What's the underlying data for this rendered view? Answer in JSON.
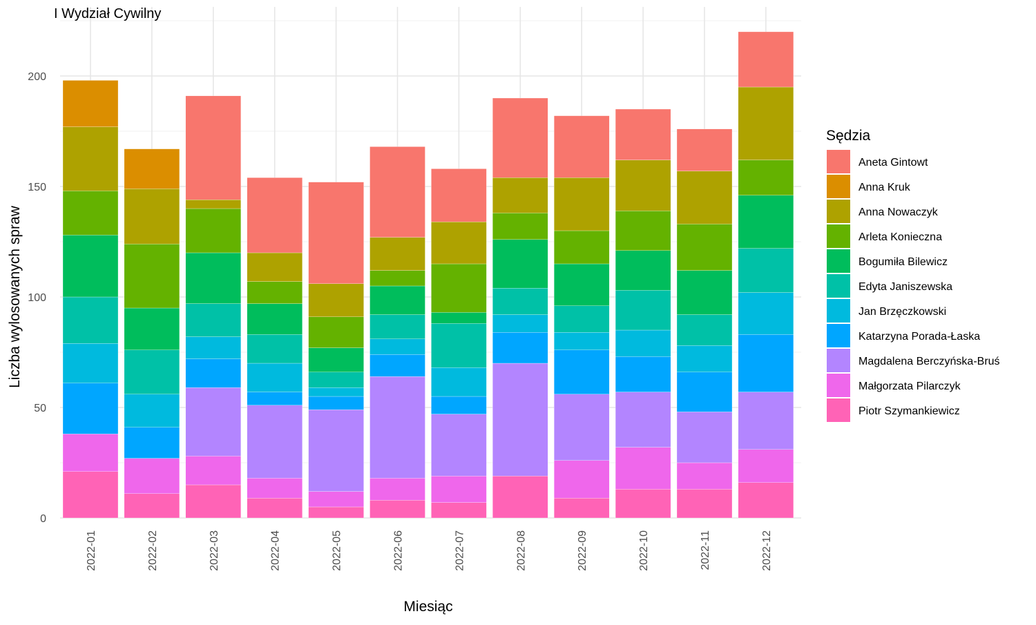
{
  "chart_data": {
    "type": "bar",
    "stacked": true,
    "title": "I Wydział Cywilny",
    "xlabel": "Miesiąc",
    "ylabel": "Liczba wylosowanych spraw",
    "ylim": [
      0,
      220
    ],
    "yticks": [
      0,
      50,
      100,
      150,
      200
    ],
    "grid": true,
    "legend_title": "Sędzia",
    "legend_position": "right",
    "categories": [
      "2022-01",
      "2022-02",
      "2022-03",
      "2022-04",
      "2022-05",
      "2022-06",
      "2022-07",
      "2022-08",
      "2022-09",
      "2022-10",
      "2022-11",
      "2022-12"
    ],
    "series": [
      {
        "name": "Aneta Gintowt",
        "color": "#F8766D",
        "values": [
          0,
          0,
          47,
          34,
          46,
          41,
          24,
          36,
          28,
          23,
          19,
          25
        ]
      },
      {
        "name": "Anna Kruk",
        "color": "#DB8E00",
        "values": [
          21,
          18,
          0,
          0,
          0,
          0,
          0,
          0,
          0,
          0,
          0,
          0
        ]
      },
      {
        "name": "Anna Nowaczyk",
        "color": "#AEA200",
        "values": [
          29,
          25,
          4,
          13,
          15,
          15,
          19,
          16,
          24,
          23,
          24,
          33
        ]
      },
      {
        "name": "Arleta Konieczna",
        "color": "#64B200",
        "values": [
          20,
          29,
          20,
          10,
          14,
          7,
          22,
          12,
          15,
          18,
          21,
          16
        ]
      },
      {
        "name": "Bogumiła Bilewicz",
        "color": "#00BD5C",
        "values": [
          28,
          19,
          23,
          14,
          11,
          13,
          5,
          22,
          19,
          18,
          20,
          24
        ]
      },
      {
        "name": "Edyta Janiszewska",
        "color": "#00C1A7",
        "values": [
          21,
          20,
          15,
          13,
          7,
          11,
          20,
          12,
          12,
          18,
          14,
          20
        ]
      },
      {
        "name": "Jan Brzęczkowski",
        "color": "#00BADE",
        "values": [
          18,
          15,
          10,
          13,
          4,
          7,
          13,
          8,
          8,
          12,
          12,
          19
        ]
      },
      {
        "name": "Katarzyna Porada-Łaska",
        "color": "#00A6FF",
        "values": [
          23,
          14,
          13,
          6,
          6,
          10,
          8,
          14,
          20,
          16,
          18,
          26
        ]
      },
      {
        "name": "Magdalena Berczyńska-Bruś",
        "color": "#B385FF",
        "values": [
          0,
          0,
          31,
          33,
          37,
          46,
          28,
          51,
          30,
          25,
          23,
          26
        ]
      },
      {
        "name": "Małgorzata Pilarczyk",
        "color": "#EF67EB",
        "values": [
          17,
          16,
          13,
          9,
          7,
          10,
          12,
          0,
          17,
          19,
          12,
          15
        ]
      },
      {
        "name": "Piotr Szymankiewicz",
        "color": "#FF63B6",
        "values": [
          21,
          11,
          15,
          9,
          5,
          8,
          7,
          19,
          9,
          13,
          13,
          16
        ]
      }
    ]
  }
}
